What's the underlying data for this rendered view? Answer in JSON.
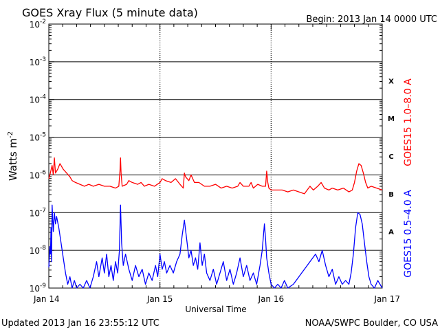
{
  "header": {
    "title": "GOES Xray Flux (5 minute data)",
    "begin": "Begin:  2013 Jan 14 0000 UTC"
  },
  "footer": {
    "updated": "Updated 2013 Jan 16 23:55:12 UTC",
    "credit": "NOAA/SWPC Boulder, CO USA"
  },
  "chart_data": {
    "type": "line",
    "title": "GOES Xray Flux (5 minute data)",
    "xlabel": "Universal Time",
    "ylabel": "Watts m",
    "ylabel_sup": "-2",
    "y_scale": "log",
    "ylim_exponent": [
      -9,
      -2
    ],
    "xlim_days": [
      0,
      3
    ],
    "x_tick_labels": [
      "Jan 14",
      "Jan 15",
      "Jan 16",
      "Jan 17"
    ],
    "y_tick_labels": [
      {
        "base": "10",
        "exp": "-9"
      },
      {
        "base": "10",
        "exp": "-8"
      },
      {
        "base": "10",
        "exp": "-7"
      },
      {
        "base": "10",
        "exp": "-6"
      },
      {
        "base": "10",
        "exp": "-5"
      },
      {
        "base": "10",
        "exp": "-4"
      },
      {
        "base": "10",
        "exp": "-3"
      },
      {
        "base": "10",
        "exp": "-2"
      }
    ],
    "flare_classes": [
      {
        "label": "A",
        "exp": -7.5
      },
      {
        "label": "B",
        "exp": -6.5
      },
      {
        "label": "C",
        "exp": -5.5
      },
      {
        "label": "M",
        "exp": -4.5
      },
      {
        "label": "X",
        "exp": -3.5
      }
    ],
    "grid": true,
    "series": [
      {
        "name": "GOES15 1.0–8.0 A",
        "color": "#ff0000",
        "points": [
          [
            0.0,
            -6.1
          ],
          [
            0.01,
            -6.0
          ],
          [
            0.03,
            -5.75
          ],
          [
            0.04,
            -6.0
          ],
          [
            0.05,
            -5.55
          ],
          [
            0.06,
            -5.95
          ],
          [
            0.08,
            -5.85
          ],
          [
            0.1,
            -5.7
          ],
          [
            0.13,
            -5.85
          ],
          [
            0.16,
            -5.95
          ],
          [
            0.19,
            -6.05
          ],
          [
            0.21,
            -6.15
          ],
          [
            0.24,
            -6.2
          ],
          [
            0.28,
            -6.25
          ],
          [
            0.32,
            -6.3
          ],
          [
            0.36,
            -6.25
          ],
          [
            0.4,
            -6.3
          ],
          [
            0.45,
            -6.25
          ],
          [
            0.5,
            -6.3
          ],
          [
            0.55,
            -6.3
          ],
          [
            0.6,
            -6.35
          ],
          [
            0.63,
            -6.3
          ],
          [
            0.64,
            -5.9
          ],
          [
            0.645,
            -5.55
          ],
          [
            0.65,
            -5.95
          ],
          [
            0.66,
            -6.3
          ],
          [
            0.7,
            -6.25
          ],
          [
            0.72,
            -6.15
          ],
          [
            0.75,
            -6.2
          ],
          [
            0.8,
            -6.25
          ],
          [
            0.83,
            -6.2
          ],
          [
            0.86,
            -6.3
          ],
          [
            0.9,
            -6.25
          ],
          [
            0.95,
            -6.3
          ],
          [
            1.0,
            -6.2
          ],
          [
            1.02,
            -6.1
          ],
          [
            1.05,
            -6.15
          ],
          [
            1.1,
            -6.2
          ],
          [
            1.14,
            -6.1
          ],
          [
            1.18,
            -6.25
          ],
          [
            1.21,
            -6.35
          ],
          [
            1.22,
            -5.95
          ],
          [
            1.23,
            -6.05
          ],
          [
            1.26,
            -6.15
          ],
          [
            1.28,
            -6.0
          ],
          [
            1.31,
            -6.2
          ],
          [
            1.35,
            -6.2
          ],
          [
            1.4,
            -6.3
          ],
          [
            1.45,
            -6.3
          ],
          [
            1.5,
            -6.25
          ],
          [
            1.55,
            -6.35
          ],
          [
            1.6,
            -6.3
          ],
          [
            1.65,
            -6.35
          ],
          [
            1.7,
            -6.3
          ],
          [
            1.72,
            -6.2
          ],
          [
            1.75,
            -6.3
          ],
          [
            1.8,
            -6.3
          ],
          [
            1.82,
            -6.2
          ],
          [
            1.84,
            -6.35
          ],
          [
            1.88,
            -6.25
          ],
          [
            1.92,
            -6.3
          ],
          [
            1.95,
            -6.3
          ],
          [
            1.96,
            -5.9
          ],
          [
            1.97,
            -6.2
          ],
          [
            1.98,
            -6.35
          ],
          [
            2.0,
            -6.4
          ],
          [
            2.05,
            -6.4
          ],
          [
            2.1,
            -6.4
          ],
          [
            2.15,
            -6.45
          ],
          [
            2.2,
            -6.4
          ],
          [
            2.25,
            -6.45
          ],
          [
            2.3,
            -6.5
          ],
          [
            2.35,
            -6.3
          ],
          [
            2.38,
            -6.4
          ],
          [
            2.42,
            -6.3
          ],
          [
            2.45,
            -6.2
          ],
          [
            2.48,
            -6.35
          ],
          [
            2.52,
            -6.4
          ],
          [
            2.55,
            -6.35
          ],
          [
            2.6,
            -6.4
          ],
          [
            2.65,
            -6.35
          ],
          [
            2.7,
            -6.45
          ],
          [
            2.73,
            -6.4
          ],
          [
            2.75,
            -6.2
          ],
          [
            2.77,
            -5.9
          ],
          [
            2.79,
            -5.7
          ],
          [
            2.81,
            -5.75
          ],
          [
            2.83,
            -5.95
          ],
          [
            2.85,
            -6.2
          ],
          [
            2.87,
            -6.35
          ],
          [
            2.9,
            -6.3
          ],
          [
            2.95,
            -6.35
          ],
          [
            3.0,
            -6.4
          ]
        ]
      },
      {
        "name": "GOES15 0.5–4.0 A",
        "color": "#0000ff",
        "points": [
          [
            0.0,
            -8.45
          ],
          [
            0.01,
            -7.9
          ],
          [
            0.015,
            -8.1
          ],
          [
            0.02,
            -7.4
          ],
          [
            0.025,
            -8.3
          ],
          [
            0.03,
            -6.8
          ],
          [
            0.04,
            -7.5
          ],
          [
            0.05,
            -7.0
          ],
          [
            0.06,
            -7.3
          ],
          [
            0.07,
            -7.1
          ],
          [
            0.09,
            -7.4
          ],
          [
            0.11,
            -7.8
          ],
          [
            0.13,
            -8.2
          ],
          [
            0.15,
            -8.6
          ],
          [
            0.17,
            -8.9
          ],
          [
            0.19,
            -8.7
          ],
          [
            0.21,
            -9.0
          ],
          [
            0.23,
            -8.8
          ],
          [
            0.25,
            -9.0
          ],
          [
            0.28,
            -8.9
          ],
          [
            0.31,
            -9.0
          ],
          [
            0.34,
            -8.8
          ],
          [
            0.37,
            -9.0
          ],
          [
            0.4,
            -8.7
          ],
          [
            0.43,
            -8.3
          ],
          [
            0.45,
            -8.7
          ],
          [
            0.48,
            -8.2
          ],
          [
            0.5,
            -8.6
          ],
          [
            0.52,
            -8.1
          ],
          [
            0.54,
            -8.7
          ],
          [
            0.56,
            -8.4
          ],
          [
            0.58,
            -8.8
          ],
          [
            0.6,
            -8.3
          ],
          [
            0.62,
            -8.6
          ],
          [
            0.635,
            -8.0
          ],
          [
            0.645,
            -6.8
          ],
          [
            0.655,
            -7.8
          ],
          [
            0.67,
            -8.4
          ],
          [
            0.69,
            -8.1
          ],
          [
            0.72,
            -8.5
          ],
          [
            0.75,
            -8.8
          ],
          [
            0.78,
            -8.4
          ],
          [
            0.81,
            -8.7
          ],
          [
            0.84,
            -8.5
          ],
          [
            0.87,
            -8.9
          ],
          [
            0.9,
            -8.6
          ],
          [
            0.93,
            -8.8
          ],
          [
            0.96,
            -8.4
          ],
          [
            0.98,
            -8.7
          ],
          [
            1.0,
            -8.1
          ],
          [
            1.02,
            -8.5
          ],
          [
            1.04,
            -8.3
          ],
          [
            1.06,
            -8.6
          ],
          [
            1.09,
            -8.4
          ],
          [
            1.12,
            -8.6
          ],
          [
            1.15,
            -8.3
          ],
          [
            1.18,
            -8.1
          ],
          [
            1.2,
            -7.6
          ],
          [
            1.22,
            -7.2
          ],
          [
            1.24,
            -7.7
          ],
          [
            1.26,
            -8.2
          ],
          [
            1.28,
            -8.0
          ],
          [
            1.3,
            -8.4
          ],
          [
            1.32,
            -8.2
          ],
          [
            1.34,
            -8.5
          ],
          [
            1.36,
            -7.8
          ],
          [
            1.38,
            -8.4
          ],
          [
            1.4,
            -8.1
          ],
          [
            1.42,
            -8.6
          ],
          [
            1.45,
            -8.8
          ],
          [
            1.48,
            -8.5
          ],
          [
            1.51,
            -8.9
          ],
          [
            1.54,
            -8.6
          ],
          [
            1.57,
            -8.3
          ],
          [
            1.6,
            -8.8
          ],
          [
            1.63,
            -8.5
          ],
          [
            1.66,
            -8.9
          ],
          [
            1.69,
            -8.6
          ],
          [
            1.72,
            -8.2
          ],
          [
            1.75,
            -8.7
          ],
          [
            1.78,
            -8.4
          ],
          [
            1.81,
            -8.8
          ],
          [
            1.84,
            -8.6
          ],
          [
            1.87,
            -8.9
          ],
          [
            1.9,
            -8.4
          ],
          [
            1.92,
            -8.0
          ],
          [
            1.94,
            -7.3
          ],
          [
            1.95,
            -7.7
          ],
          [
            1.96,
            -8.2
          ],
          [
            1.98,
            -8.6
          ],
          [
            2.0,
            -8.9
          ],
          [
            2.03,
            -9.0
          ],
          [
            2.06,
            -8.9
          ],
          [
            2.09,
            -9.0
          ],
          [
            2.12,
            -8.8
          ],
          [
            2.15,
            -9.0
          ],
          [
            2.2,
            -8.9
          ],
          [
            2.25,
            -8.7
          ],
          [
            2.3,
            -8.5
          ],
          [
            2.35,
            -8.3
          ],
          [
            2.4,
            -8.1
          ],
          [
            2.43,
            -8.3
          ],
          [
            2.46,
            -8.0
          ],
          [
            2.49,
            -8.4
          ],
          [
            2.52,
            -8.7
          ],
          [
            2.55,
            -8.5
          ],
          [
            2.58,
            -8.9
          ],
          [
            2.61,
            -8.7
          ],
          [
            2.64,
            -8.9
          ],
          [
            2.67,
            -8.8
          ],
          [
            2.7,
            -8.9
          ],
          [
            2.72,
            -8.6
          ],
          [
            2.74,
            -8.1
          ],
          [
            2.76,
            -7.4
          ],
          [
            2.78,
            -7.0
          ],
          [
            2.8,
            -7.05
          ],
          [
            2.82,
            -7.3
          ],
          [
            2.84,
            -7.8
          ],
          [
            2.86,
            -8.3
          ],
          [
            2.88,
            -8.7
          ],
          [
            2.9,
            -8.9
          ],
          [
            2.93,
            -9.0
          ],
          [
            2.96,
            -8.8
          ],
          [
            3.0,
            -9.0
          ]
        ]
      }
    ]
  }
}
